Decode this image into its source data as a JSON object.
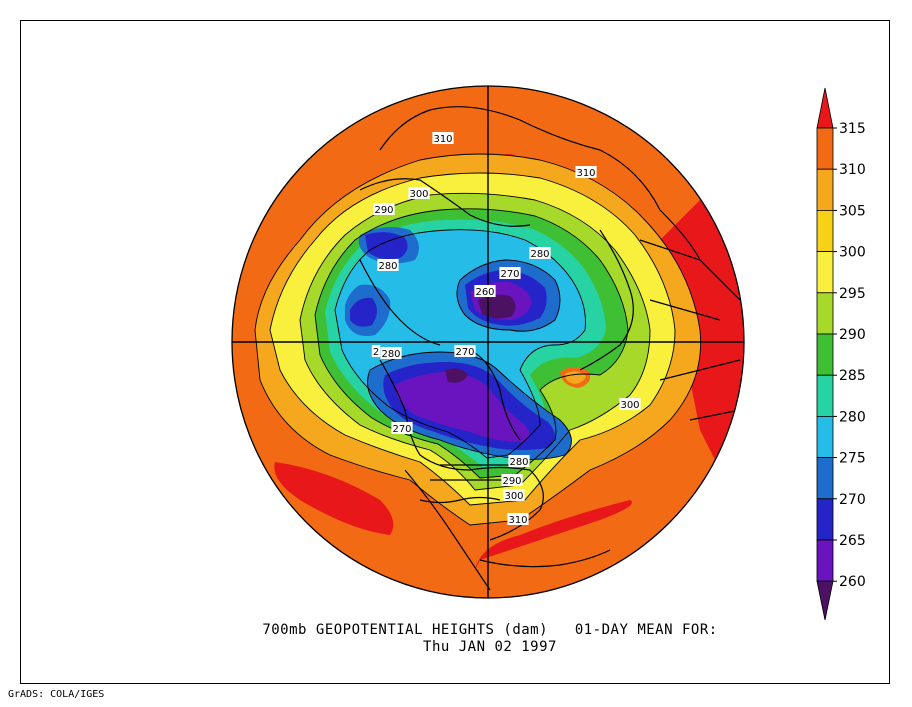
{
  "title_line1": "700mb GEOPOTENTIAL HEIGHTS (dam)   01-DAY MEAN FOR:",
  "title_line2": "Thu JAN 02 1997",
  "credit": "GrADS: COLA/IGES",
  "colorbar": {
    "tick_labels": [
      "315",
      "310",
      "305",
      "300",
      "295",
      "290",
      "285",
      "280",
      "275",
      "270",
      "265",
      "260"
    ],
    "bins": [
      {
        "range": "above 315",
        "color": "#e8181a"
      },
      {
        "range": "310-315",
        "color": "#f26a13"
      },
      {
        "range": "305-310",
        "color": "#f5a71e"
      },
      {
        "range": "300-305",
        "color": "#f7d118"
      },
      {
        "range": "295-300",
        "color": "#f8f03c"
      },
      {
        "range": "290-295",
        "color": "#a6d92a"
      },
      {
        "range": "285-290",
        "color": "#3fbf34"
      },
      {
        "range": "280-285",
        "color": "#27d3a3"
      },
      {
        "range": "275-280",
        "color": "#25bde8"
      },
      {
        "range": "270-275",
        "color": "#1e6ccb"
      },
      {
        "range": "265-270",
        "color": "#2424c8"
      },
      {
        "range": "260-265",
        "color": "#6a14c0"
      },
      {
        "range": "below 260",
        "color": "#4c1163"
      }
    ]
  },
  "contour_labels": [
    "310",
    "310",
    "300",
    "290",
    "280",
    "280",
    "270",
    "260",
    "2",
    "280",
    "270",
    "300",
    "270",
    "280",
    "290",
    "300",
    "310"
  ],
  "map": {
    "projection": "north polar stereographic",
    "field": "700mb geopotential height",
    "units": "dam"
  }
}
